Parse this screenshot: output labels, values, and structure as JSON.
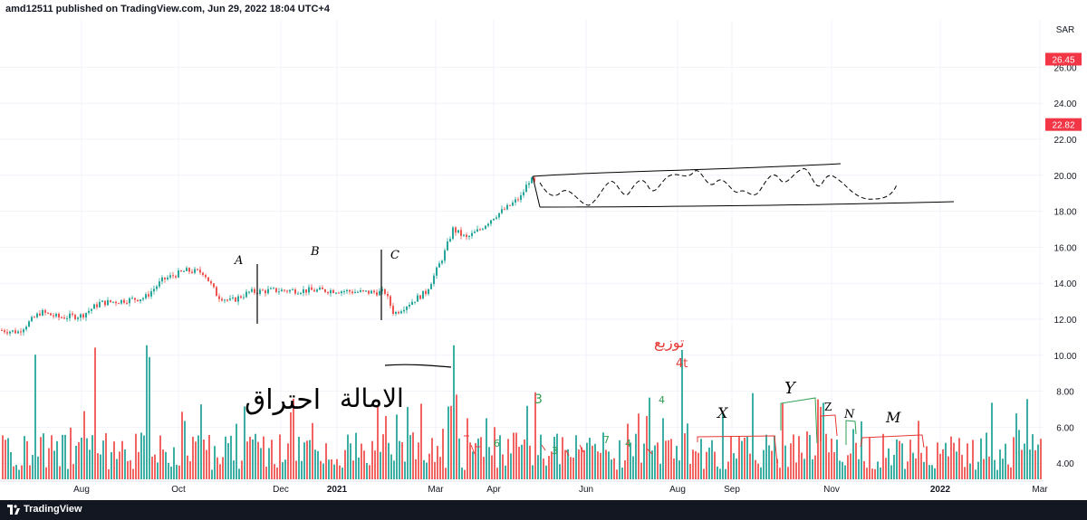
{
  "header": {
    "publish_info": "amd12511 published on TradingView.com, Jun 29, 2022 18:04 UTC+4"
  },
  "footer": {
    "brand": "TradingView"
  },
  "colors": {
    "up": "#26a69a",
    "down": "#ef5350",
    "price_label": "#f23645",
    "grid": "#f0f3fa",
    "axis_text": "#131722",
    "ink": "#000000",
    "ink_red": "#e53935",
    "ink_green": "#2e9e4f",
    "bottom_bar": "#131722"
  },
  "chart_data": {
    "type": "candlestick",
    "currency": "SAR",
    "y_ticks": [
      "26.00",
      "24.00",
      "22.00",
      "20.00",
      "18.00",
      "16.00",
      "14.00",
      "12.00",
      "10.00",
      "8.00",
      "6.00",
      "4.00"
    ],
    "ylim": [
      3.0,
      28.0
    ],
    "x_ticks": [
      "Aug",
      "Oct",
      "Dec",
      "2021",
      "Mar",
      "Apr",
      "Jun",
      "Aug",
      "Sep",
      "Nov",
      "2022",
      "Mar"
    ],
    "price_labels": [
      "26.45",
      "22.82"
    ],
    "price_path": [
      {
        "x": 0,
        "p": 11.4
      },
      {
        "x": 20,
        "p": 11.3
      },
      {
        "x": 45,
        "p": 12.4
      },
      {
        "x": 65,
        "p": 12.1
      },
      {
        "x": 90,
        "p": 12.2
      },
      {
        "x": 110,
        "p": 12.9
      },
      {
        "x": 130,
        "p": 13.0
      },
      {
        "x": 160,
        "p": 13.2
      },
      {
        "x": 180,
        "p": 14.2
      },
      {
        "x": 205,
        "p": 14.7
      },
      {
        "x": 225,
        "p": 14.6
      },
      {
        "x": 240,
        "p": 13.3
      },
      {
        "x": 255,
        "p": 13.0
      },
      {
        "x": 275,
        "p": 13.5
      },
      {
        "x": 300,
        "p": 13.6
      },
      {
        "x": 330,
        "p": 13.6
      },
      {
        "x": 370,
        "p": 13.6
      },
      {
        "x": 400,
        "p": 13.5
      },
      {
        "x": 425,
        "p": 13.5
      },
      {
        "x": 435,
        "p": 12.3
      },
      {
        "x": 455,
        "p": 13.0
      },
      {
        "x": 470,
        "p": 13.5
      },
      {
        "x": 480,
        "p": 14.5
      },
      {
        "x": 490,
        "p": 15.6
      },
      {
        "x": 500,
        "p": 17.0
      },
      {
        "x": 515,
        "p": 16.5
      },
      {
        "x": 530,
        "p": 17.0
      },
      {
        "x": 545,
        "p": 17.7
      },
      {
        "x": 560,
        "p": 18.2
      },
      {
        "x": 575,
        "p": 18.8
      },
      {
        "x": 585,
        "p": 19.8
      },
      {
        "x": 595,
        "p": 19.3
      }
    ],
    "volume_ylim": [
      0,
      10
    ],
    "annotations": {
      "labels_black": [
        "A",
        "B",
        "C",
        "X",
        "Y",
        "Z",
        "N",
        "M"
      ],
      "labels_green": [
        "3",
        "4",
        "6",
        "7",
        "3",
        "4"
      ],
      "labels_red": [
        "4t"
      ],
      "arabic_texts": [
        "احتراق",
        "الامالة",
        "توزيع"
      ]
    }
  }
}
